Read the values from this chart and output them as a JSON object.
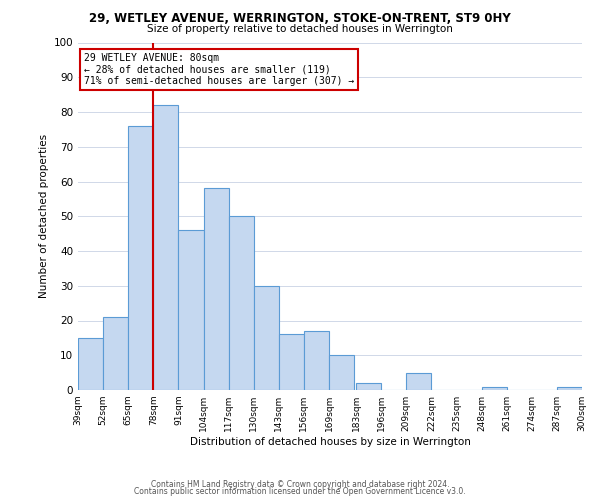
{
  "title": "29, WETLEY AVENUE, WERRINGTON, STOKE-ON-TRENT, ST9 0HY",
  "subtitle": "Size of property relative to detached houses in Werrington",
  "xlabel": "Distribution of detached houses by size in Werrington",
  "ylabel": "Number of detached properties",
  "bin_edges": [
    39,
    52,
    65,
    78,
    91,
    104,
    117,
    130,
    143,
    156,
    169,
    183,
    196,
    209,
    222,
    235,
    248,
    261,
    274,
    287,
    300
  ],
  "bar_heights": [
    15,
    21,
    76,
    82,
    46,
    58,
    50,
    30,
    16,
    17,
    10,
    2,
    0,
    5,
    0,
    0,
    1,
    0,
    0,
    1
  ],
  "bar_color": "#c5d8f0",
  "bar_edge_color": "#5b9bd5",
  "vline_x": 78,
  "vline_color": "#cc0000",
  "annotation_text": "29 WETLEY AVENUE: 80sqm\n← 28% of detached houses are smaller (119)\n71% of semi-detached houses are larger (307) →",
  "annotation_box_color": "#ffffff",
  "annotation_box_edge_color": "#cc0000",
  "ylim": [
    0,
    100
  ],
  "tick_labels": [
    "39sqm",
    "52sqm",
    "65sqm",
    "78sqm",
    "91sqm",
    "104sqm",
    "117sqm",
    "130sqm",
    "143sqm",
    "156sqm",
    "169sqm",
    "183sqm",
    "196sqm",
    "209sqm",
    "222sqm",
    "235sqm",
    "248sqm",
    "261sqm",
    "274sqm",
    "287sqm",
    "300sqm"
  ],
  "footer_line1": "Contains HM Land Registry data © Crown copyright and database right 2024.",
  "footer_line2": "Contains public sector information licensed under the Open Government Licence v3.0.",
  "background_color": "#ffffff",
  "grid_color": "#d0d8e8"
}
